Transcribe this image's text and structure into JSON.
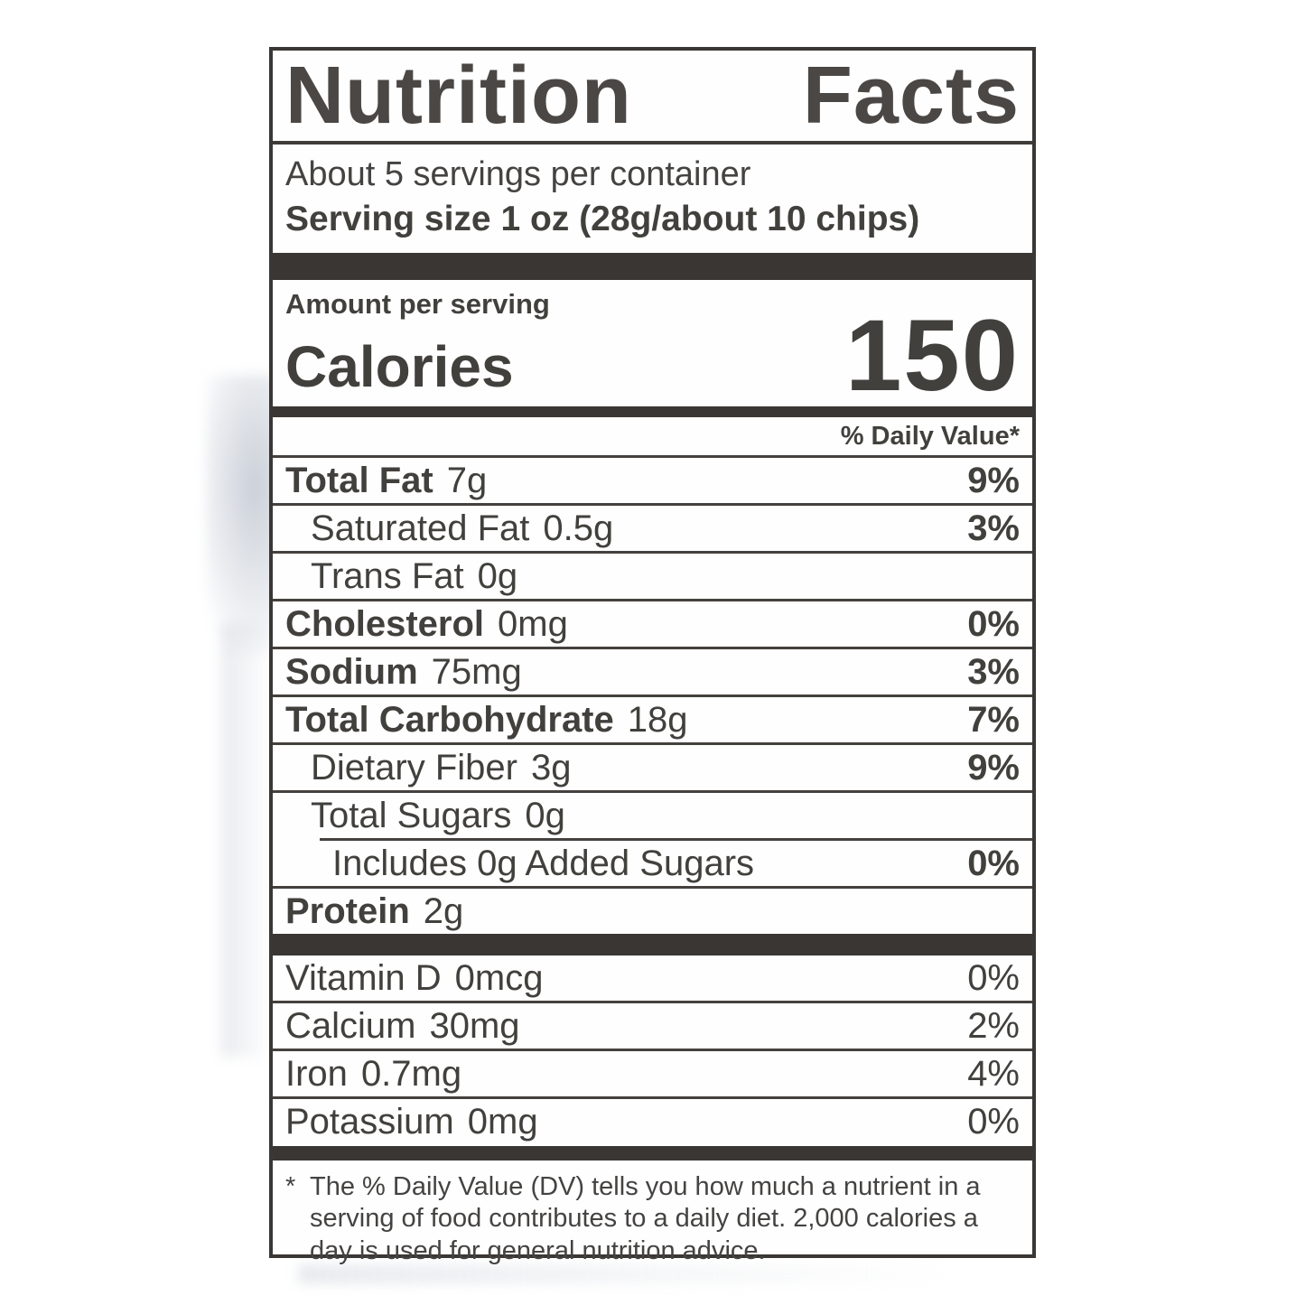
{
  "label": {
    "title_left": "Nutrition",
    "title_right": "Facts",
    "servings_per_container": "About 5 servings per container",
    "serving_size_label": "Serving size",
    "serving_size_value": "1 oz (28g/about 10 chips)",
    "amount_per_serving": "Amount per serving",
    "calories_label": "Calories",
    "calories_value": "150",
    "daily_value_header": "% Daily Value*",
    "nutrients": [
      {
        "name": "Total Fat",
        "amount": "7g",
        "dv": "9%"
      },
      {
        "name": "Saturated Fat",
        "amount": "0.5g",
        "dv": "3%"
      },
      {
        "name": "Trans Fat",
        "amount": "0g",
        "dv": ""
      },
      {
        "name": "Cholesterol",
        "amount": "0mg",
        "dv": "0%"
      },
      {
        "name": "Sodium",
        "amount": "75mg",
        "dv": "3%"
      },
      {
        "name": "Total Carbohydrate",
        "amount": "18g",
        "dv": "7%"
      },
      {
        "name": "Dietary Fiber",
        "amount": "3g",
        "dv": "9%"
      },
      {
        "name": "Total Sugars",
        "amount": "0g",
        "dv": ""
      },
      {
        "name": "Includes 0g Added Sugars",
        "amount": "",
        "dv": "0%"
      },
      {
        "name": "Protein",
        "amount": "2g",
        "dv": ""
      }
    ],
    "micronutrients": [
      {
        "name": "Vitamin D",
        "amount": "0mcg",
        "dv": "0%"
      },
      {
        "name": "Calcium",
        "amount": "30mg",
        "dv": "2%"
      },
      {
        "name": "Iron",
        "amount": "0.7mg",
        "dv": "4%"
      },
      {
        "name": "Potassium",
        "amount": "0mg",
        "dv": "0%"
      }
    ],
    "footnote_marker": "*",
    "footnote": "The % Daily Value (DV) tells you how much a nutrient in a serving of food contributes to a daily diet. 2,000 calories a day is used for general nutrition advice."
  },
  "colors": {
    "ink": "#42403d",
    "bar": "#393633",
    "panel_background": "#fefefe",
    "page_background": "#ffffff"
  }
}
